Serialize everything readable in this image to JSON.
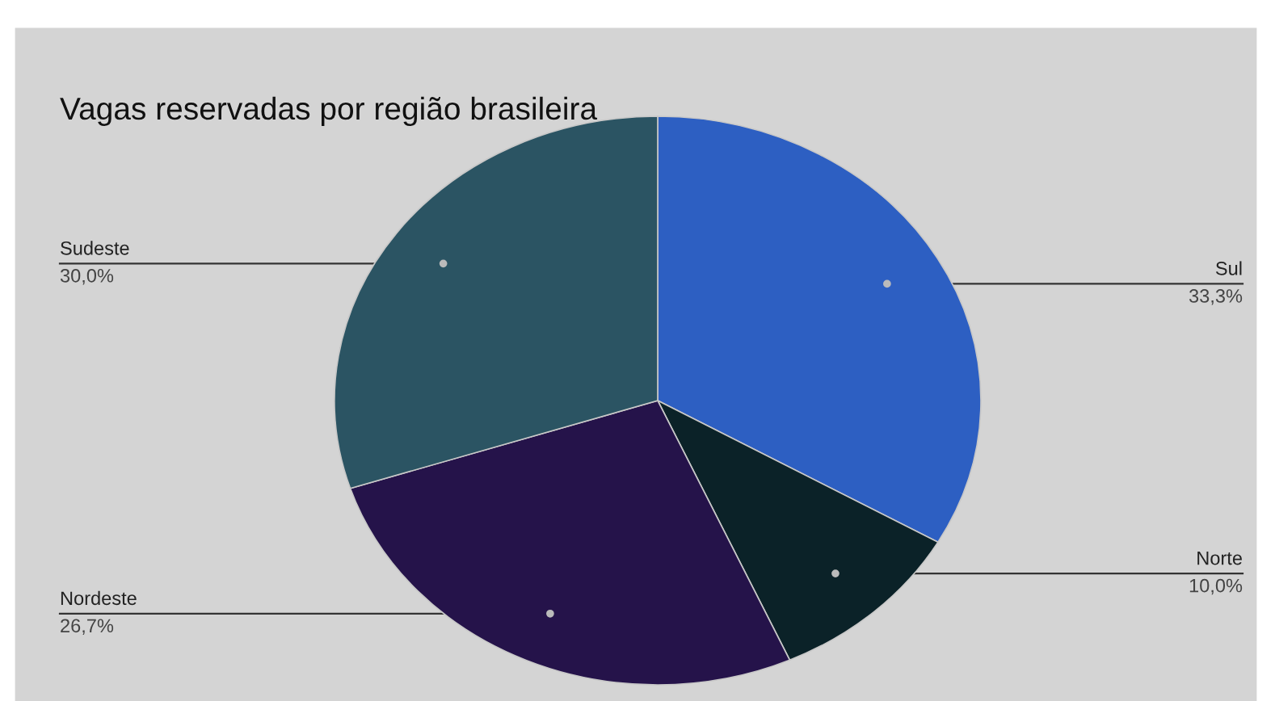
{
  "chart_data": {
    "type": "pie",
    "title": "Vagas reservadas por região brasileira",
    "categories": [
      "Sul",
      "Norte",
      "Nordeste",
      "Sudeste"
    ],
    "values": [
      33.3,
      10.0,
      26.7,
      30.0
    ],
    "value_labels": [
      "33,3%",
      "10,0%",
      "26,7%",
      "30,0%"
    ],
    "colors": [
      "#2d5fc2",
      "#0b2228",
      "#25134a",
      "#2b5463"
    ],
    "legend": false
  }
}
